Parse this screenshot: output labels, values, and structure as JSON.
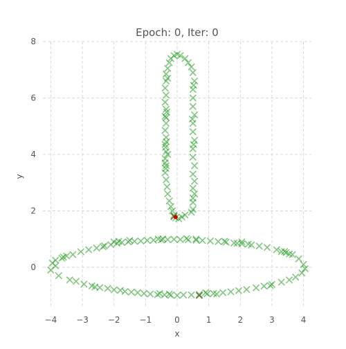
{
  "chart_data": {
    "type": "scatter",
    "title": "Epoch: 0, Iter: 0",
    "xlabel": "x",
    "ylabel": "y",
    "xlim": [
      -4.25,
      4.25
    ],
    "ylim": [
      -1.45,
      8.0
    ],
    "xticks": [
      -4,
      -3,
      -2,
      -1,
      0,
      1,
      2,
      3,
      4
    ],
    "yticks": [
      0,
      2,
      4,
      6,
      8
    ],
    "grid": true,
    "marker": "x",
    "colors": {
      "data": "#2ca02c",
      "highlight_dark": "#556b2f",
      "red_point": "#cc0000"
    },
    "series": [
      {
        "marker": "x",
        "color": "#2ca02c",
        "points": [
          [
            -4.0,
            -0.1
          ],
          [
            -3.95,
            0.15
          ],
          [
            -3.85,
            0.25
          ],
          [
            -3.75,
            -0.3
          ],
          [
            -3.65,
            0.32
          ],
          [
            -3.5,
            0.4
          ],
          [
            -3.4,
            -0.45
          ],
          [
            -3.3,
            0.45
          ],
          [
            -3.2,
            -0.5
          ],
          [
            -3.05,
            0.55
          ],
          [
            -2.95,
            -0.6
          ],
          [
            -2.8,
            0.62
          ],
          [
            -2.7,
            -0.66
          ],
          [
            -2.55,
            0.68
          ],
          [
            -2.45,
            -0.72
          ],
          [
            -2.3,
            0.76
          ],
          [
            -2.2,
            -0.75
          ],
          [
            -2.1,
            0.8
          ],
          [
            -2.0,
            -0.8
          ],
          [
            -1.9,
            0.85
          ],
          [
            -1.8,
            -0.82
          ],
          [
            -1.75,
            0.88
          ],
          [
            -1.65,
            -0.86
          ],
          [
            -1.55,
            0.9
          ],
          [
            -1.45,
            -0.88
          ],
          [
            -1.35,
            0.92
          ],
          [
            -1.25,
            -0.9
          ],
          [
            -1.15,
            0.93
          ],
          [
            -1.05,
            -0.93
          ],
          [
            -0.95,
            0.95
          ],
          [
            -0.85,
            -0.95
          ],
          [
            -0.75,
            0.96
          ],
          [
            -0.62,
            -0.97
          ],
          [
            -0.5,
            0.97
          ],
          [
            -0.4,
            -0.98
          ],
          [
            -0.3,
            0.98
          ],
          [
            -0.2,
            -0.99
          ],
          [
            -0.1,
            0.99
          ],
          [
            0.0,
            -1.0
          ],
          [
            0.1,
            0.98
          ],
          [
            0.2,
            -0.98
          ],
          [
            0.35,
            0.97
          ],
          [
            0.45,
            -0.98
          ],
          [
            0.6,
            0.96
          ],
          [
            0.7,
            -0.96
          ],
          [
            0.8,
            0.95
          ],
          [
            0.95,
            -0.94
          ],
          [
            1.05,
            0.93
          ],
          [
            1.15,
            -0.93
          ],
          [
            1.3,
            0.91
          ],
          [
            1.45,
            -0.9
          ],
          [
            1.55,
            0.89
          ],
          [
            1.7,
            -0.87
          ],
          [
            1.8,
            0.86
          ],
          [
            1.95,
            -0.83
          ],
          [
            2.05,
            0.83
          ],
          [
            2.2,
            -0.79
          ],
          [
            2.35,
            0.79
          ],
          [
            2.5,
            -0.73
          ],
          [
            2.6,
            0.75
          ],
          [
            2.75,
            -0.67
          ],
          [
            2.85,
            0.7
          ],
          [
            3.0,
            -0.61
          ],
          [
            3.15,
            0.62
          ],
          [
            3.3,
            -0.53
          ],
          [
            3.4,
            0.56
          ],
          [
            3.55,
            -0.45
          ],
          [
            3.65,
            0.45
          ],
          [
            3.75,
            -0.35
          ],
          [
            3.85,
            0.3
          ],
          [
            3.95,
            -0.2
          ],
          [
            4.0,
            0.1
          ],
          [
            4.05,
            -0.05
          ],
          [
            -3.85,
            0.05
          ],
          [
            -2.0,
            0.9
          ],
          [
            -1.85,
            0.92
          ],
          [
            1.9,
            0.85
          ],
          [
            2.05,
            0.9
          ],
          [
            3.3,
            0.55
          ],
          [
            3.45,
            0.52
          ],
          [
            -0.55,
            -0.93
          ],
          [
            -0.25,
            -0.95
          ],
          [
            0.9,
            -0.9
          ],
          [
            1.25,
            -0.95
          ],
          [
            -2.6,
            -0.7
          ],
          [
            2.95,
            -0.65
          ],
          [
            0.6,
            1.0
          ],
          [
            -0.6,
            1.0
          ],
          [
            -0.45,
            1.0
          ],
          [
            0.3,
            1.02
          ],
          [
            1.5,
            0.92
          ],
          [
            -1.5,
            0.95
          ],
          [
            2.25,
            0.82
          ],
          [
            -2.35,
            0.73
          ],
          [
            3.55,
            0.47
          ],
          [
            -3.6,
            0.36
          ],
          [
            0.45,
            1.95
          ],
          [
            0.5,
            2.05
          ],
          [
            0.5,
            2.3
          ],
          [
            0.55,
            2.6
          ],
          [
            0.5,
            2.8
          ],
          [
            0.55,
            3.05
          ],
          [
            0.5,
            3.3
          ],
          [
            0.55,
            3.6
          ],
          [
            0.5,
            3.9
          ],
          [
            0.5,
            4.2
          ],
          [
            0.55,
            4.5
          ],
          [
            0.5,
            4.8
          ],
          [
            0.5,
            5.1
          ],
          [
            0.55,
            5.4
          ],
          [
            0.5,
            5.7
          ],
          [
            0.5,
            6.0
          ],
          [
            0.5,
            6.3
          ],
          [
            0.55,
            6.6
          ],
          [
            0.5,
            6.9
          ],
          [
            0.45,
            7.1
          ],
          [
            0.35,
            7.25
          ],
          [
            0.25,
            7.4
          ],
          [
            0.1,
            7.5
          ],
          [
            0.0,
            7.55
          ],
          [
            -0.1,
            7.5
          ],
          [
            -0.2,
            7.4
          ],
          [
            -0.25,
            7.25
          ],
          [
            -0.3,
            7.05
          ],
          [
            -0.35,
            6.85
          ],
          [
            -0.35,
            6.6
          ],
          [
            -0.38,
            6.35
          ],
          [
            -0.35,
            6.1
          ],
          [
            -0.38,
            5.85
          ],
          [
            -0.35,
            5.6
          ],
          [
            -0.38,
            5.35
          ],
          [
            -0.35,
            5.1
          ],
          [
            -0.38,
            4.85
          ],
          [
            -0.35,
            4.6
          ],
          [
            -0.38,
            4.35
          ],
          [
            -0.35,
            4.1
          ],
          [
            -0.38,
            3.85
          ],
          [
            -0.35,
            3.6
          ],
          [
            -0.38,
            3.35
          ],
          [
            -0.35,
            3.1
          ],
          [
            -0.32,
            2.85
          ],
          [
            -0.3,
            2.6
          ],
          [
            -0.25,
            2.35
          ],
          [
            -0.2,
            2.15
          ],
          [
            -0.15,
            2.0
          ],
          [
            -0.1,
            1.85
          ],
          [
            -0.05,
            1.75
          ],
          [
            0.05,
            1.72
          ],
          [
            0.15,
            1.78
          ],
          [
            0.25,
            1.85
          ],
          [
            -0.3,
            4.0
          ],
          [
            -0.38,
            3.7
          ],
          [
            -0.36,
            3.5
          ],
          [
            -0.35,
            5.3
          ],
          [
            -0.33,
            5.5
          ],
          [
            -0.3,
            6.7
          ],
          [
            0.52,
            6.45
          ],
          [
            0.48,
            5.25
          ],
          [
            0.52,
            4.35
          ],
          [
            0.5,
            2.45
          ],
          [
            -0.37,
            4.25
          ],
          [
            -0.34,
            4.45
          ]
        ]
      },
      {
        "marker": "x",
        "color": "#556b2f",
        "points": [
          [
            0.7,
            -1.0
          ],
          [
            -0.1,
            1.8
          ]
        ]
      },
      {
        "marker": "dot",
        "color": "#cc0000",
        "points": [
          [
            -0.05,
            1.78
          ]
        ]
      }
    ]
  }
}
